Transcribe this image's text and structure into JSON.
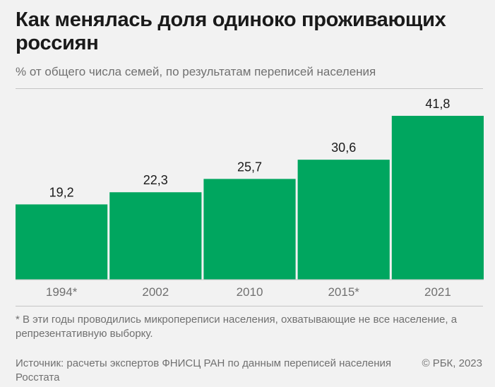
{
  "header": {
    "title": "Как менялась доля одиноко проживающих россиян",
    "subtitle": "% от общего числа семей, по результатам переписей населения"
  },
  "footer": {
    "note": "* В эти годы проводились микропереписи населения, охватывающие не все население, а репрезентативную выборку.",
    "source": "Источник: расчеты экспертов ФНИСЦ РАН по данным переписей населения Росстата",
    "copyright": "© РБК, 2023"
  },
  "colors": {
    "bar": "#00a65f",
    "axis": "#c4c4c4"
  },
  "chart_data": {
    "type": "bar",
    "title": "Как менялась доля одиноко проживающих россиян",
    "subtitle": "% от общего числа семей, по результатам переписей населения",
    "categories": [
      "1994*",
      "2002",
      "2010",
      "2015*",
      "2021"
    ],
    "values": [
      19.2,
      22.3,
      25.7,
      30.6,
      41.8
    ],
    "value_labels": [
      "19,2",
      "22,3",
      "25,7",
      "30,6",
      "41,8"
    ],
    "xlabel": "",
    "ylabel": "%",
    "ylim": [
      0,
      41.8
    ],
    "grid": false,
    "legend": "none"
  }
}
